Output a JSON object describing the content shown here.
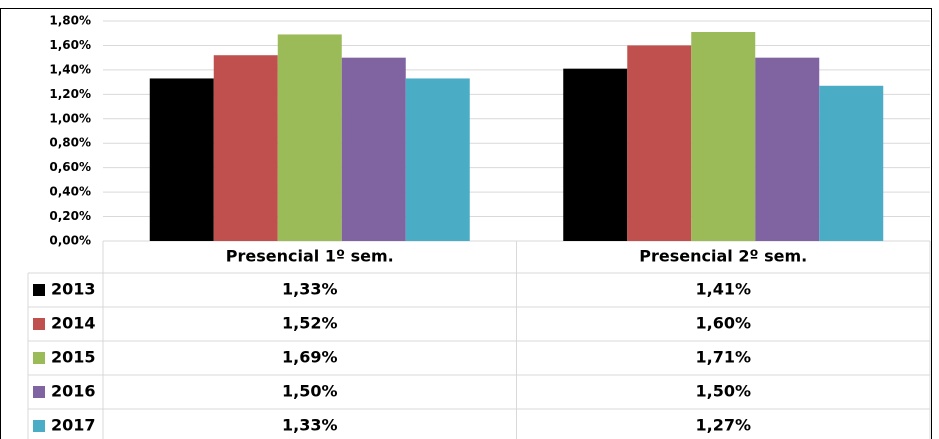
{
  "chart_data": {
    "type": "bar",
    "categories": [
      "Presencial 1º sem.",
      "Presencial 2º sem."
    ],
    "series": [
      {
        "name": "2013",
        "color": "#000000",
        "values": [
          1.33,
          1.41
        ],
        "value_labels": [
          "1,33%",
          "1,41%"
        ]
      },
      {
        "name": "2014",
        "color": "#c0504d",
        "values": [
          1.52,
          1.6
        ],
        "value_labels": [
          "1,52%",
          "1,60%"
        ]
      },
      {
        "name": "2015",
        "color": "#9bbb59",
        "values": [
          1.69,
          1.71
        ],
        "value_labels": [
          "1,69%",
          "1,71%"
        ]
      },
      {
        "name": "2016",
        "color": "#8064a2",
        "values": [
          1.5,
          1.5
        ],
        "value_labels": [
          "1,50%",
          "1,50%"
        ]
      },
      {
        "name": "2017",
        "color": "#4bacc6",
        "values": [
          1.33,
          1.27
        ],
        "value_labels": [
          "1,33%",
          "1,27%"
        ]
      }
    ],
    "ylim": [
      0,
      1.8
    ],
    "yticks": [
      {
        "value": 0,
        "label": "0,00%"
      },
      {
        "value": 0.2,
        "label": "0,20%"
      },
      {
        "value": 0.4,
        "label": "0,40%"
      },
      {
        "value": 0.6,
        "label": "0,60%"
      },
      {
        "value": 0.8,
        "label": "0,80%"
      },
      {
        "value": 1.0,
        "label": "1,00%"
      },
      {
        "value": 1.2,
        "label": "1,20%"
      },
      {
        "value": 1.4,
        "label": "1,40%"
      },
      {
        "value": 1.6,
        "label": "1,60%"
      },
      {
        "value": 1.8,
        "label": "1,80%"
      }
    ],
    "grid": true
  }
}
